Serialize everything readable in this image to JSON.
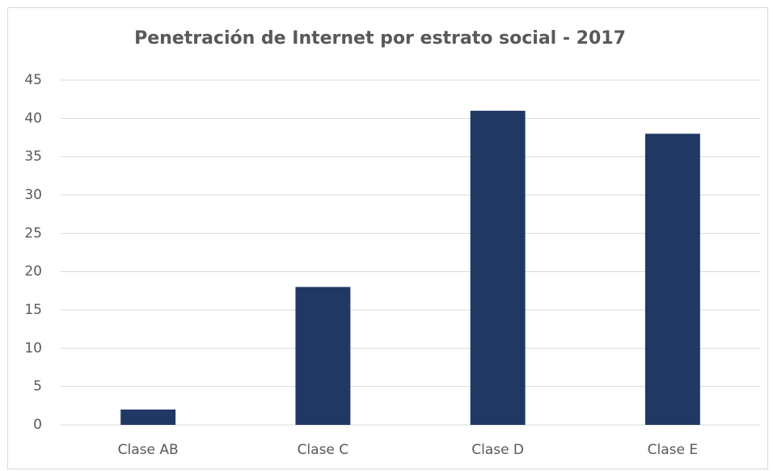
{
  "chart_data": {
    "type": "bar",
    "title": "Penetración de Internet por estrato social - 2017",
    "categories": [
      "Clase AB",
      "Clase C",
      "Clase D",
      "Clase E"
    ],
    "values": [
      2,
      18,
      41,
      38
    ],
    "color": "#203864",
    "ylim": [
      0,
      45
    ],
    "yticks": [
      0,
      5,
      10,
      15,
      20,
      25,
      30,
      35,
      40,
      45
    ],
    "grid": true
  }
}
